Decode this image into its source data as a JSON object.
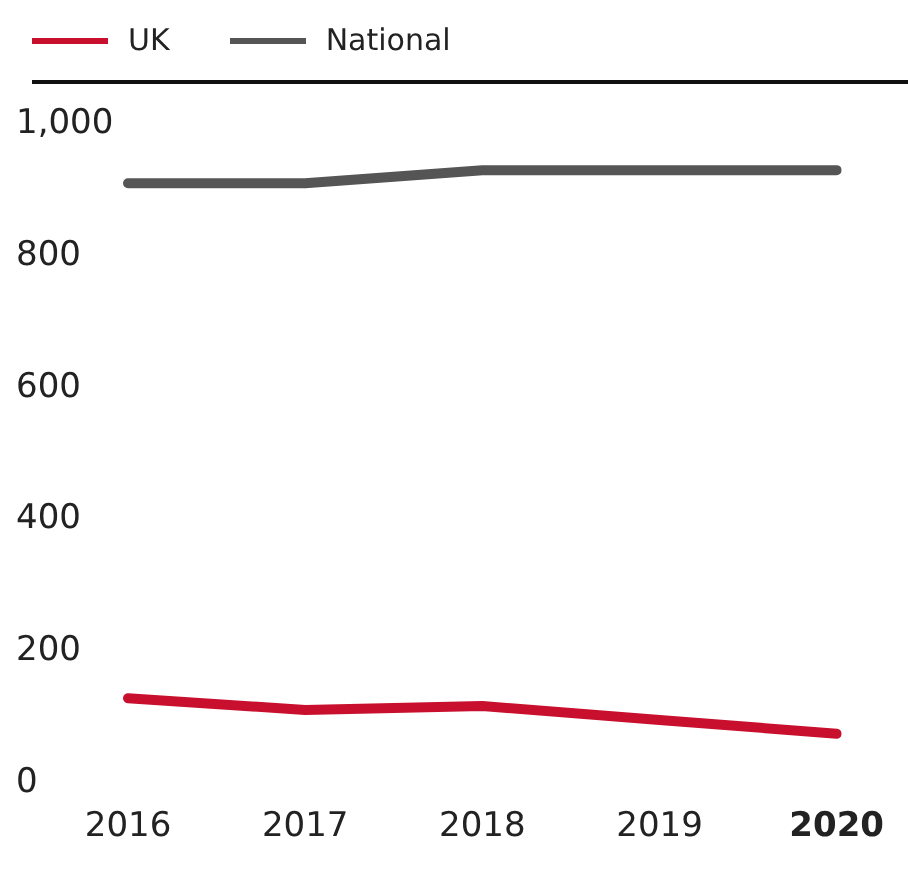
{
  "chart_data": {
    "type": "line",
    "categories": [
      "2016",
      "2017",
      "2018",
      "2019",
      "2020"
    ],
    "series": [
      {
        "name": "UK",
        "color": "#c8102e",
        "values": [
          129,
          111,
          117,
          96,
          75
        ]
      },
      {
        "name": "National",
        "color": "#555555",
        "values": [
          910,
          910,
          930,
          930,
          930
        ]
      }
    ],
    "ylim": [
      0,
      1000
    ],
    "yticks": [
      0,
      200,
      400,
      600,
      800,
      {
        "value": 1000,
        "label": "1,000"
      }
    ],
    "grid": false,
    "legend": "top left",
    "marker": "none",
    "line_style": "solid"
  }
}
